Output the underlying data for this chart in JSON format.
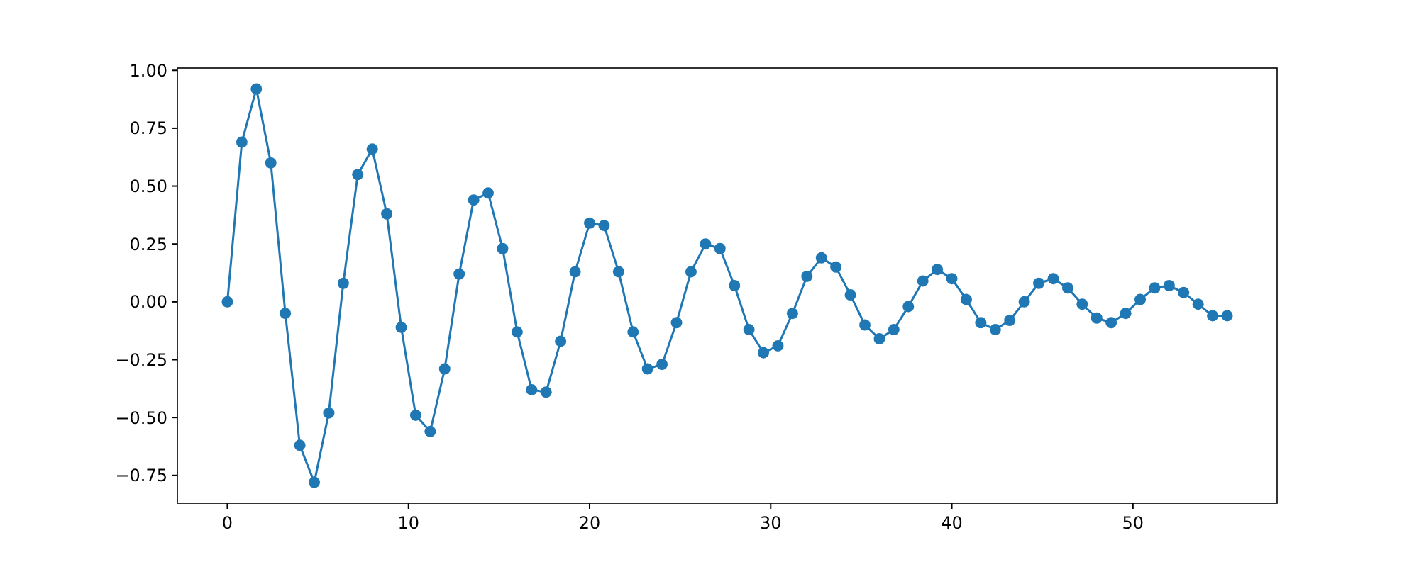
{
  "chart_data": {
    "type": "line",
    "marker": "circle",
    "line_style": "solid",
    "x": [
      0,
      0.8,
      1.6,
      2.4,
      3.2,
      4,
      4.8,
      5.6,
      6.4,
      7.2,
      8,
      8.8,
      9.6,
      10.4,
      11.2,
      12,
      12.8,
      13.6,
      14.4,
      15.2,
      16,
      16.8,
      17.6,
      18.4,
      19.2,
      20,
      20.8,
      21.6,
      22.4,
      23.2,
      24,
      24.8,
      25.6,
      26.4,
      27.2,
      28,
      28.8,
      29.6,
      30.4,
      31.2,
      32,
      32.8,
      33.6,
      34.4,
      35.2,
      36,
      36.8,
      37.6,
      38.4,
      39.2,
      40,
      40.8,
      41.6,
      42.4,
      43.2,
      44,
      44.8,
      45.6,
      46.4,
      47.2,
      48,
      48.8,
      49.6,
      50.4,
      51.2,
      52,
      52.8,
      53.6,
      54.4,
      55.2
    ],
    "series": [
      {
        "color": "#1f77b4",
        "values": [
          0,
          0.69,
          0.92,
          0.6,
          -0.05,
          -0.62,
          -0.78,
          -0.48,
          0.08,
          0.55,
          0.66,
          0.38,
          -0.11,
          -0.49,
          -0.56,
          -0.29,
          0.12,
          0.44,
          0.47,
          0.23,
          -0.13,
          -0.38,
          -0.39,
          -0.17,
          0.13,
          0.34,
          0.33,
          0.13,
          -0.13,
          -0.29,
          -0.27,
          -0.09,
          0.13,
          0.25,
          0.23,
          0.07,
          -0.12,
          -0.22,
          -0.19,
          -0.05,
          0.11,
          0.19,
          0.15,
          0.03,
          -0.1,
          -0.16,
          -0.12,
          -0.02,
          0.09,
          0.14,
          0.1,
          0.01,
          -0.09,
          -0.12,
          -0.08,
          0,
          0.08,
          0.1,
          0.06,
          -0.01,
          -0.07,
          -0.09,
          -0.05,
          0.01,
          0.06,
          0.07,
          0.04,
          -0.01,
          -0.06,
          -0.06
        ]
      }
    ],
    "xlim": [
      -2.76,
      57.96
    ],
    "ylim": [
      -0.87,
      1.01
    ],
    "xticks": [
      0,
      10,
      20,
      30,
      40,
      50
    ],
    "yticks": [
      {
        "value": -0.75,
        "label": "−0.75"
      },
      {
        "value": -0.5,
        "label": "−0.50"
      },
      {
        "value": -0.25,
        "label": "−0.25"
      },
      {
        "value": 0,
        "label": "0.00"
      },
      {
        "value": 0.25,
        "label": "0.25"
      },
      {
        "value": 0.5,
        "label": "0.50"
      },
      {
        "value": 0.75,
        "label": "0.75"
      },
      {
        "value": 1,
        "label": "1.00"
      }
    ]
  }
}
